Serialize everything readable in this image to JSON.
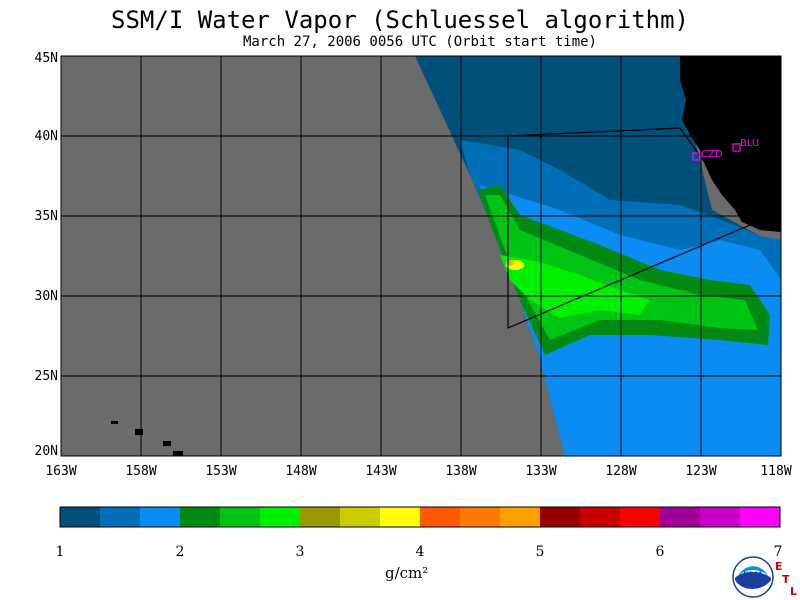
{
  "title": "SSM/I Water Vapor (Schluessel algorithm)",
  "subtitle": "March 27, 2006  0056 UTC  (Orbit start time)",
  "map": {
    "lat_labels": [
      "45N",
      "40N",
      "35N",
      "30N",
      "25N",
      "20N"
    ],
    "lon_labels": [
      "163W",
      "158W",
      "153W",
      "148W",
      "143W",
      "138W",
      "133W",
      "128W",
      "123W",
      "118W"
    ],
    "stations": [
      {
        "code": "CZD",
        "color": "#ff00ff"
      },
      {
        "code": "BLU",
        "color": "#ff00ff"
      }
    ],
    "colors": {
      "land": "#000000",
      "no_data": "#6b6b6b",
      "grid": "#000000"
    }
  },
  "colorbar": {
    "ticks": [
      "1",
      "2",
      "3",
      "4",
      "5",
      "6",
      "7"
    ],
    "units": "g/cm²",
    "colors": [
      "#00507a",
      "#006fb8",
      "#0a8cf2",
      "#008a14",
      "#00c414",
      "#00f000",
      "#9a9a00",
      "#cccc00",
      "#ffff00",
      "#ff5a00",
      "#ff7a00",
      "#ffa000",
      "#980000",
      "#c80000",
      "#ff0000",
      "#a00098",
      "#c800c8",
      "#ff00ff"
    ]
  },
  "credits": {
    "logo": "NOAA",
    "etl": [
      "E",
      "T",
      "L"
    ]
  }
}
